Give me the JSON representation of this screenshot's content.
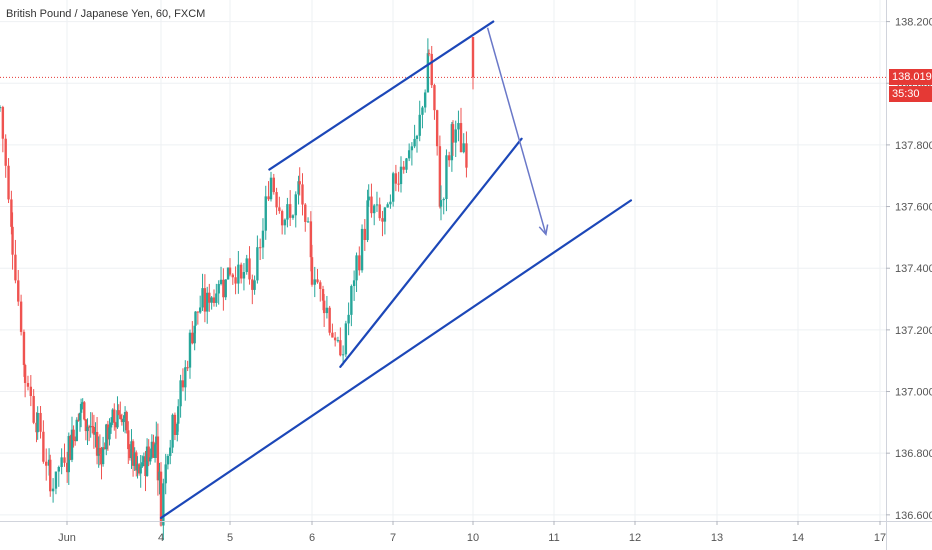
{
  "title": "British Pound / Japanese Yen, 60, FXCM",
  "colors": {
    "up": "#26a69a",
    "down": "#ef5350",
    "trendline": "#1c47b8",
    "arrow": "#6a78c8",
    "price_line": "#e53935",
    "grid": "#eef0f3",
    "axis_text": "#555555"
  },
  "last_price": {
    "value": 138.019,
    "label": "138.019",
    "countdown": "35:30",
    "color": "#e53935"
  },
  "chart_data": {
    "type": "candlestick",
    "title": "British Pound / Japanese Yen, 60, FXCM",
    "ylim": [
      136.58,
      138.27
    ],
    "y_ticks": [
      {
        "value": 136.6,
        "label": "136.600"
      },
      {
        "value": 136.8,
        "label": "136.800"
      },
      {
        "value": 137.0,
        "label": "137.000"
      },
      {
        "value": 137.2,
        "label": "137.200"
      },
      {
        "value": 137.4,
        "label": "137.400"
      },
      {
        "value": 137.6,
        "label": "137.600"
      },
      {
        "value": 137.8,
        "label": "137.800"
      },
      {
        "value": 138.0,
        "label": "138.000"
      },
      {
        "value": 138.2,
        "label": "138.200"
      }
    ],
    "x_ticks": [
      {
        "pos": 1.0,
        "label": "Jun"
      },
      {
        "pos": 3.0,
        "label": "4"
      },
      {
        "pos": 4.0,
        "label": "5"
      },
      {
        "pos": 5.0,
        "label": "6"
      },
      {
        "pos": 6.0,
        "label": "7"
      },
      {
        "pos": 7.0,
        "label": "10"
      },
      {
        "pos": 8.0,
        "label": "11"
      },
      {
        "pos": 9.0,
        "label": "12"
      },
      {
        "pos": 10.0,
        "label": "13"
      },
      {
        "pos": 11.0,
        "label": "14"
      },
      {
        "pos": 12.0,
        "label": "17"
      }
    ],
    "xlim": [
      0.2,
      12.0
    ],
    "grid": true,
    "price_segments": [
      {
        "x": [
          0.2,
          0.35,
          0.5,
          0.65,
          0.8
        ],
        "y": [
          137.92,
          137.5,
          137.05,
          136.9,
          136.7
        ]
      },
      {
        "x": [
          0.8,
          1.3,
          1.7,
          2.1,
          2.5,
          2.9,
          3.0
        ],
        "y": [
          136.7,
          136.95,
          136.8,
          136.95,
          136.72,
          136.85,
          136.62
        ]
      },
      {
        "x": [
          3.0,
          3.1,
          3.25,
          3.5,
          3.7,
          4.0,
          4.3,
          4.5
        ],
        "y": [
          136.62,
          136.85,
          136.95,
          137.25,
          137.3,
          137.4,
          137.35,
          137.7
        ]
      },
      {
        "x": [
          4.5,
          4.7,
          4.85,
          5.0,
          5.15,
          5.35
        ],
        "y": [
          137.7,
          137.55,
          137.65,
          137.4,
          137.3,
          137.1
        ]
      },
      {
        "x": [
          5.35,
          5.55,
          5.7,
          5.9,
          6.1,
          6.3
        ],
        "y": [
          137.1,
          137.4,
          137.6,
          137.55,
          137.75,
          137.8
        ]
      },
      {
        "x": [
          6.3,
          6.45,
          6.6,
          6.75,
          6.85,
          6.95
        ],
        "y": [
          137.8,
          138.1,
          137.6,
          137.85,
          137.8,
          137.75
        ]
      }
    ],
    "last_candle": {
      "x": 7.0,
      "open": 138.15,
      "high": 138.15,
      "low": 137.98,
      "close": 138.019
    },
    "annotations": {
      "trendlines": [
        {
          "x1": 4.48,
          "y1": 137.72,
          "x2": 7.25,
          "y2": 138.2
        },
        {
          "x1": 3.0,
          "y1": 136.59,
          "x2": 8.95,
          "y2": 137.62
        },
        {
          "x1": 5.35,
          "y1": 137.08,
          "x2": 7.6,
          "y2": 137.82
        }
      ],
      "arrow": {
        "x1": 7.18,
        "y1": 138.18,
        "x2": 7.9,
        "y2": 137.51
      }
    }
  }
}
